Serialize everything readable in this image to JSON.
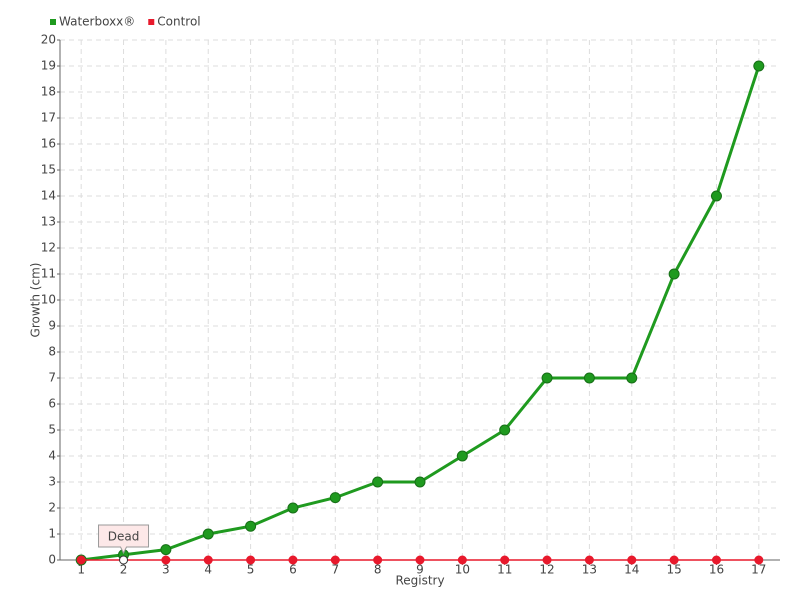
{
  "chart_data": {
    "type": "line",
    "y_label": "Growth (cm)",
    "x_label": "Registry",
    "categories": [
      "1",
      "2",
      "3",
      "4",
      "5",
      "6",
      "7",
      "8",
      "9",
      "10",
      "11",
      "12",
      "13",
      "14",
      "15",
      "16",
      "17"
    ],
    "series": [
      {
        "name": "Waterboxx®",
        "color": "#1f9a1f",
        "values": [
          0,
          0.2,
          0.4,
          1,
          1.3,
          2,
          2.4,
          3,
          3,
          4,
          5,
          7,
          7,
          7,
          11,
          14,
          19
        ]
      },
      {
        "name": "Control",
        "color": "#e8192c",
        "values": [
          0,
          0,
          0,
          0,
          0,
          0,
          0,
          0,
          0,
          0,
          0,
          0,
          0,
          0,
          0,
          0,
          0
        ]
      }
    ],
    "annotations": [
      {
        "text": "Dead",
        "category": "2"
      }
    ],
    "ylim": [
      0,
      20
    ],
    "yticks": [
      0,
      1,
      2,
      3,
      4,
      5,
      6,
      7,
      8,
      9,
      10,
      11,
      12,
      13,
      14,
      15,
      16,
      17,
      18,
      19,
      20
    ],
    "grid": true,
    "legend": "top-left"
  }
}
